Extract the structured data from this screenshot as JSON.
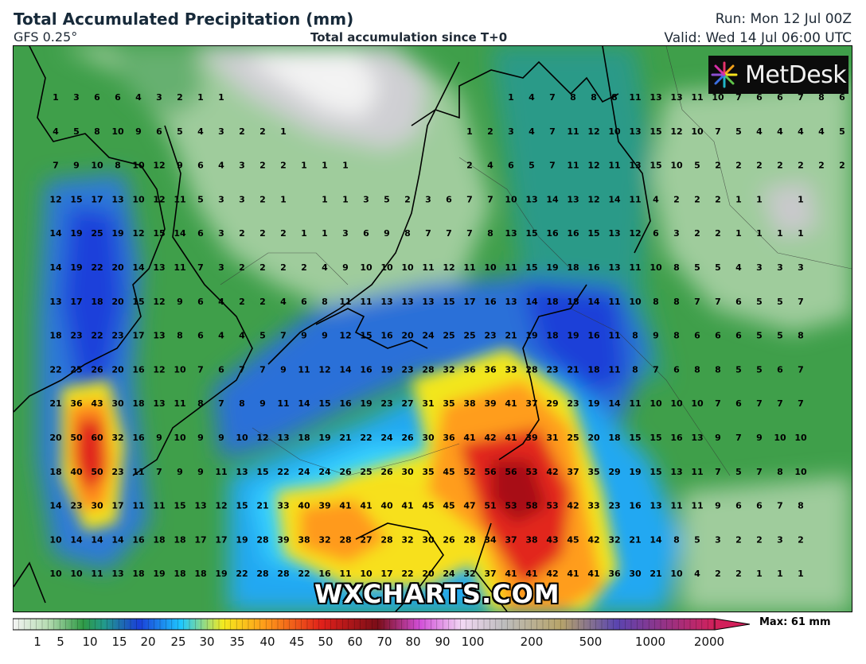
{
  "header": {
    "title": "Total Accumulated Precipitation (mm)",
    "model": "GFS 0.25°",
    "subtitle": "Total accumulation since T+0",
    "run": "Run: Mon 12 Jul 00Z",
    "valid": "Valid: Wed 14 Jul 06:00 UTC"
  },
  "branding": {
    "logo_text": "MetDesk",
    "watermark": "WXCHARTS.COM"
  },
  "legend": {
    "labels": [
      "1",
      "5",
      "10",
      "15",
      "20",
      "25",
      "30",
      "35",
      "40",
      "45",
      "50",
      "60",
      "70",
      "80",
      "90",
      "100",
      "200",
      "500",
      "1000",
      "2000"
    ],
    "max_label": "Max: 61 mm"
  },
  "colors": {
    "dry": "#d4d4d4",
    "light": "#a6cfa6",
    "green": "#2f9a45",
    "teal": "#229a8a",
    "blue": "#1a3fd8",
    "cyan": "#1ec8ff",
    "yellow": "#f5ea1e",
    "orange": "#ff9a1a",
    "red": "#e0201a",
    "darkred": "#a00f12"
  },
  "grid_values": [
    [
      "1",
      "3",
      "6",
      "6",
      "4",
      "3",
      "2",
      "1",
      "1",
      "",
      "",
      "",
      "",
      "",
      "",
      "",
      "",
      "",
      "",
      "",
      "",
      "",
      "1",
      "4",
      "7",
      "8",
      "8",
      "8",
      "11",
      "13",
      "13",
      "11",
      "10",
      "7",
      "6",
      "6",
      "7",
      "8",
      "6"
    ],
    [
      "4",
      "5",
      "8",
      "10",
      "9",
      "6",
      "5",
      "4",
      "3",
      "2",
      "2",
      "1",
      "",
      "",
      "",
      "",
      "",
      "",
      "",
      "",
      "1",
      "2",
      "3",
      "4",
      "7",
      "11",
      "12",
      "10",
      "13",
      "15",
      "12",
      "10",
      "7",
      "5",
      "4",
      "4",
      "4",
      "4",
      "5"
    ],
    [
      "7",
      "9",
      "10",
      "8",
      "10",
      "12",
      "9",
      "6",
      "4",
      "3",
      "2",
      "2",
      "1",
      "1",
      "1",
      "",
      "",
      "",
      "",
      "",
      "2",
      "4",
      "6",
      "5",
      "7",
      "11",
      "12",
      "11",
      "13",
      "15",
      "10",
      "5",
      "2",
      "2",
      "2",
      "2",
      "2",
      "2",
      "2"
    ],
    [
      "12",
      "15",
      "17",
      "13",
      "10",
      "12",
      "11",
      "5",
      "3",
      "3",
      "2",
      "1",
      "",
      "1",
      "1",
      "3",
      "5",
      "2",
      "3",
      "6",
      "7",
      "7",
      "10",
      "13",
      "14",
      "13",
      "12",
      "14",
      "11",
      "4",
      "2",
      "2",
      "2",
      "1",
      "1",
      "",
      "1"
    ],
    [
      "14",
      "19",
      "25",
      "19",
      "12",
      "15",
      "14",
      "6",
      "3",
      "2",
      "2",
      "2",
      "1",
      "1",
      "3",
      "6",
      "9",
      "8",
      "7",
      "7",
      "7",
      "8",
      "13",
      "15",
      "16",
      "16",
      "15",
      "13",
      "12",
      "6",
      "3",
      "2",
      "2",
      "1",
      "1",
      "1",
      "1"
    ],
    [
      "14",
      "19",
      "22",
      "20",
      "14",
      "13",
      "11",
      "7",
      "3",
      "2",
      "2",
      "2",
      "2",
      "4",
      "9",
      "10",
      "10",
      "10",
      "11",
      "12",
      "11",
      "10",
      "11",
      "15",
      "19",
      "18",
      "16",
      "13",
      "11",
      "10",
      "8",
      "5",
      "5",
      "4",
      "3",
      "3",
      "3"
    ],
    [
      "13",
      "17",
      "18",
      "20",
      "15",
      "12",
      "9",
      "6",
      "4",
      "2",
      "2",
      "4",
      "6",
      "8",
      "11",
      "11",
      "13",
      "13",
      "13",
      "15",
      "17",
      "16",
      "13",
      "14",
      "18",
      "18",
      "14",
      "11",
      "10",
      "8",
      "8",
      "7",
      "7",
      "6",
      "5",
      "5",
      "7"
    ],
    [
      "18",
      "23",
      "22",
      "23",
      "17",
      "13",
      "8",
      "6",
      "4",
      "4",
      "5",
      "7",
      "9",
      "9",
      "12",
      "15",
      "16",
      "20",
      "24",
      "25",
      "25",
      "23",
      "21",
      "19",
      "18",
      "19",
      "16",
      "11",
      "8",
      "9",
      "8",
      "6",
      "6",
      "6",
      "5",
      "5",
      "8"
    ],
    [
      "22",
      "25",
      "26",
      "20",
      "16",
      "12",
      "10",
      "7",
      "6",
      "7",
      "7",
      "9",
      "11",
      "12",
      "14",
      "16",
      "19",
      "23",
      "28",
      "32",
      "36",
      "36",
      "33",
      "28",
      "23",
      "21",
      "18",
      "11",
      "8",
      "7",
      "6",
      "8",
      "8",
      "5",
      "5",
      "6",
      "7"
    ],
    [
      "21",
      "36",
      "43",
      "30",
      "18",
      "13",
      "11",
      "8",
      "7",
      "8",
      "9",
      "11",
      "14",
      "15",
      "16",
      "19",
      "23",
      "27",
      "31",
      "35",
      "38",
      "39",
      "41",
      "37",
      "29",
      "23",
      "19",
      "14",
      "11",
      "10",
      "10",
      "10",
      "7",
      "6",
      "7",
      "7",
      "7"
    ],
    [
      "20",
      "50",
      "60",
      "32",
      "16",
      "9",
      "10",
      "9",
      "9",
      "10",
      "12",
      "13",
      "18",
      "19",
      "21",
      "22",
      "24",
      "26",
      "30",
      "36",
      "41",
      "42",
      "41",
      "39",
      "31",
      "25",
      "20",
      "18",
      "15",
      "15",
      "16",
      "13",
      "9",
      "7",
      "9",
      "10",
      "10"
    ],
    [
      "18",
      "40",
      "50",
      "23",
      "11",
      "7",
      "9",
      "9",
      "11",
      "13",
      "15",
      "22",
      "24",
      "24",
      "26",
      "25",
      "26",
      "30",
      "35",
      "45",
      "52",
      "56",
      "56",
      "53",
      "42",
      "37",
      "35",
      "29",
      "19",
      "15",
      "13",
      "11",
      "7",
      "5",
      "7",
      "8",
      "10"
    ],
    [
      "14",
      "23",
      "30",
      "17",
      "11",
      "11",
      "15",
      "13",
      "12",
      "15",
      "21",
      "33",
      "40",
      "39",
      "41",
      "41",
      "40",
      "41",
      "45",
      "45",
      "47",
      "51",
      "53",
      "58",
      "53",
      "42",
      "33",
      "23",
      "16",
      "13",
      "11",
      "11",
      "9",
      "6",
      "6",
      "7",
      "8"
    ],
    [
      "10",
      "14",
      "14",
      "14",
      "16",
      "18",
      "18",
      "17",
      "17",
      "19",
      "28",
      "39",
      "38",
      "32",
      "28",
      "27",
      "28",
      "32",
      "30",
      "26",
      "28",
      "34",
      "37",
      "38",
      "43",
      "45",
      "42",
      "32",
      "21",
      "14",
      "8",
      "5",
      "3",
      "2",
      "2",
      "3",
      "2"
    ],
    [
      "10",
      "10",
      "11",
      "13",
      "18",
      "19",
      "18",
      "18",
      "19",
      "22",
      "28",
      "28",
      "22",
      "16",
      "11",
      "10",
      "17",
      "22",
      "20",
      "24",
      "32",
      "37",
      "41",
      "41",
      "42",
      "41",
      "41",
      "36",
      "30",
      "21",
      "10",
      "4",
      "2",
      "2",
      "1",
      "1",
      "1"
    ]
  ]
}
